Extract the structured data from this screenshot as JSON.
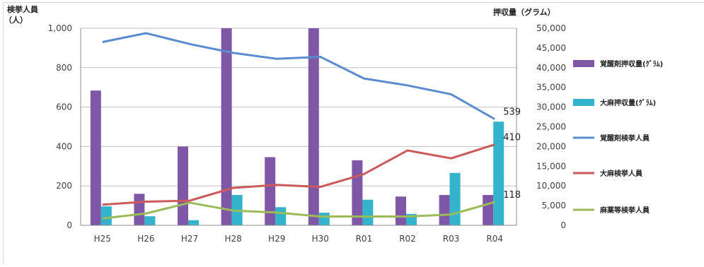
{
  "chart_data": {
    "type": "bar",
    "categories": [
      "H25",
      "H26",
      "H27",
      "H28",
      "H29",
      "H30",
      "R01",
      "R02",
      "R03",
      "R04"
    ],
    "left_axis": {
      "label_line1": "検挙人員",
      "label_line2": "（人）",
      "ylim": [
        0,
        1000
      ],
      "ticks": [
        0,
        200,
        400,
        600,
        800,
        1000
      ],
      "tick_labels": [
        "0",
        "200",
        "400",
        "600",
        "800",
        "1,000"
      ]
    },
    "right_axis": {
      "label": "押収量（グラム）",
      "ylim": [
        0,
        50000
      ],
      "ticks": [
        0,
        5000,
        10000,
        15000,
        20000,
        25000,
        30000,
        35000,
        40000,
        45000,
        50000
      ],
      "tick_labels": [
        "0",
        "5,000",
        "10,000",
        "15,000",
        "20,000",
        "25,000",
        "30,000",
        "35,000",
        "40,000",
        "45,000",
        "50,000"
      ]
    },
    "grid": true,
    "legend_position": "right",
    "series": [
      {
        "name": "覚醒剤押収量(ｸﾞﾗﾑ)",
        "kind": "bar",
        "axis": "right",
        "color": "#7e58a6",
        "values": [
          34200,
          8000,
          20000,
          50000,
          17300,
          50000,
          16500,
          7300,
          7700,
          7700
        ]
      },
      {
        "name": "大麻押収量(ｸﾞﾗﾑ)",
        "kind": "bar",
        "axis": "right",
        "color": "#33b4cc",
        "values": [
          4800,
          2300,
          1300,
          7700,
          4600,
          3200,
          6500,
          2900,
          13300,
          26300
        ]
      },
      {
        "name": "覚醒剤検挙人員",
        "kind": "line",
        "axis": "left",
        "color": "#5b8bd0",
        "values": [
          930,
          975,
          920,
          875,
          845,
          855,
          745,
          710,
          665,
          539
        ]
      },
      {
        "name": "大麻検挙人員",
        "kind": "line",
        "axis": "left",
        "color": "#cc5a5a",
        "values": [
          105,
          120,
          125,
          190,
          205,
          195,
          260,
          380,
          340,
          410
        ]
      },
      {
        "name": "麻薬等検挙人員",
        "kind": "line",
        "axis": "left",
        "color": "#9bbb59",
        "values": [
          35,
          60,
          115,
          75,
          65,
          45,
          45,
          45,
          55,
          118
        ]
      }
    ],
    "annotations": [
      {
        "series": 2,
        "index": 9,
        "text": "539"
      },
      {
        "series": 3,
        "index": 9,
        "text": "410"
      },
      {
        "series": 4,
        "index": 9,
        "text": "118"
      }
    ]
  }
}
